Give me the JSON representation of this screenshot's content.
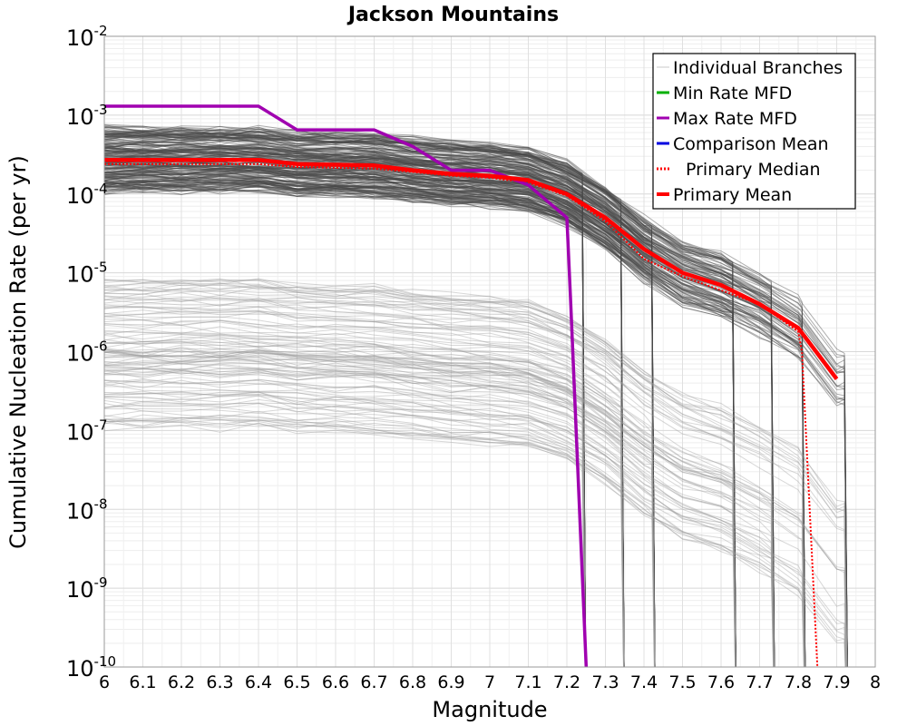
{
  "chart_data": {
    "type": "line",
    "title": "Jackson Mountains",
    "xlabel": "Magnitude",
    "ylabel": "Cumulative Nucleation Rate (per yr)",
    "xlim": [
      6,
      8
    ],
    "ylim": [
      1e-10,
      0.01
    ],
    "y_scale": "log",
    "grid": true,
    "legend_position": "top-right",
    "x_ticks": [
      "6",
      "6.1",
      "6.2",
      "6.3",
      "6.4",
      "6.5",
      "6.6",
      "6.7",
      "6.8",
      "6.9",
      "7",
      "7.1",
      "7.2",
      "7.3",
      "7.4",
      "7.5",
      "7.6",
      "7.7",
      "7.8",
      "7.9",
      "8"
    ],
    "y_ticks": [
      {
        "base": "10",
        "exp": "-2"
      },
      {
        "base": "10",
        "exp": "-3"
      },
      {
        "base": "10",
        "exp": "-4"
      },
      {
        "base": "10",
        "exp": "-5"
      },
      {
        "base": "10",
        "exp": "-6"
      },
      {
        "base": "10",
        "exp": "-7"
      },
      {
        "base": "10",
        "exp": "-8"
      },
      {
        "base": "10",
        "exp": "-9"
      },
      {
        "base": "10",
        "exp": "-10"
      }
    ],
    "legend": [
      {
        "name": "Individual Branches",
        "color": "#c8c8c8",
        "style": "solid"
      },
      {
        "name": "Min Rate MFD",
        "color": "#00b000",
        "style": "solid"
      },
      {
        "name": "Max Rate MFD",
        "color": "#a000b0",
        "style": "solid"
      },
      {
        "name": "Comparison Mean",
        "color": "#0000e0",
        "style": "solid"
      },
      {
        "name": "Primary Median",
        "color": "#ff0000",
        "style": "dotted"
      },
      {
        "name": "Primary Mean",
        "color": "#ff0000",
        "style": "solid"
      }
    ],
    "series": [
      {
        "name": "Max Rate MFD",
        "color": "#a000b0",
        "x": [
          6.0,
          6.4,
          6.5,
          6.7,
          6.8,
          6.9,
          7.0,
          7.1,
          7.2,
          7.21,
          7.25
        ],
        "y": [
          0.0013,
          0.0013,
          0.00065,
          0.00065,
          0.0004,
          0.0002,
          0.0002,
          0.00013,
          5e-05,
          4e-06,
          1e-10
        ]
      },
      {
        "name": "Primary Mean",
        "color": "#ff0000",
        "x": [
          6.0,
          6.4,
          6.5,
          6.7,
          6.8,
          6.9,
          7.0,
          7.1,
          7.2,
          7.3,
          7.4,
          7.5,
          7.6,
          7.7,
          7.8,
          7.9
        ],
        "y": [
          0.00027,
          0.00027,
          0.00024,
          0.00023,
          0.0002,
          0.00018,
          0.00017,
          0.00015,
          0.0001,
          5e-05,
          2e-05,
          1e-05,
          7e-06,
          4e-06,
          2e-06,
          4.5e-07
        ]
      },
      {
        "name": "Primary Median",
        "color": "#ff0000",
        "x": [
          6.0,
          6.4,
          6.5,
          6.7,
          6.8,
          6.9,
          7.0,
          7.1,
          7.2,
          7.3,
          7.4,
          7.5,
          7.6,
          7.7,
          7.8,
          7.81,
          7.85
        ],
        "y": [
          0.00024,
          0.00024,
          0.00022,
          0.00021,
          0.00019,
          0.00017,
          0.00016,
          0.00014,
          9.5e-05,
          4.5e-05,
          1.5e-05,
          9e-06,
          6e-06,
          4e-06,
          1.8e-06,
          1e-06,
          1e-10
        ]
      }
    ]
  }
}
